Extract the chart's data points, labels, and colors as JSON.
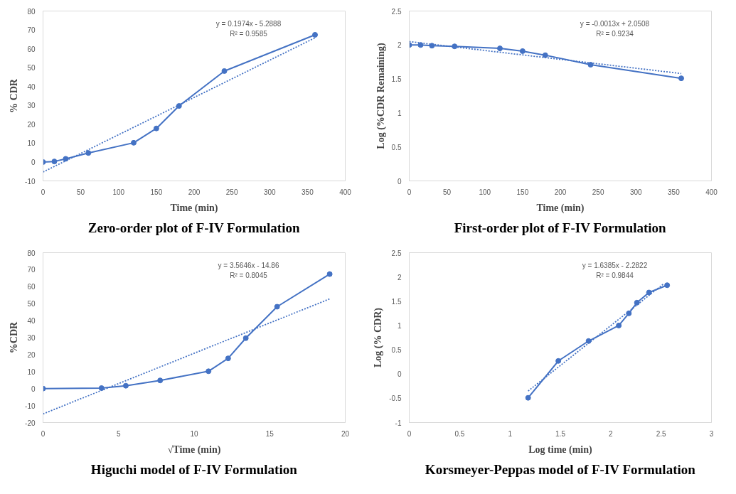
{
  "chart_data": [
    {
      "type": "line",
      "title": "Zero-order plot of F-IV Formulation",
      "xlabel": "Time (min)",
      "ylabel": "% CDR",
      "xlim": [
        0,
        400
      ],
      "xticks": [
        0,
        50,
        100,
        150,
        200,
        250,
        300,
        350,
        400
      ],
      "ylim": [
        -10,
        80
      ],
      "yticks": [
        -10,
        0,
        10,
        20,
        30,
        40,
        50,
        60,
        70,
        80
      ],
      "annotations": [
        "y = 0.1974x - 5.2888",
        "R² = 0.9585"
      ],
      "series": [
        {
          "color": "#4472c4",
          "marker": "circle",
          "line_style": "solid",
          "x": [
            0,
            15,
            30,
            60,
            120,
            150,
            180,
            240,
            360
          ],
          "values": [
            0,
            0.3,
            1.7,
            4.8,
            10.2,
            17.8,
            29.7,
            48.2,
            67.4
          ]
        },
        {
          "color": "#4472c4",
          "marker": "none",
          "line_style": "dotted",
          "x": [
            0,
            360
          ],
          "values": [
            -5.3,
            65.8
          ]
        }
      ]
    },
    {
      "type": "line",
      "title": "First-order plot of F-IV Formulation",
      "xlabel": "Time (min)",
      "ylabel": "Log (%CDR Remaining)",
      "xlim": [
        0,
        400
      ],
      "xticks": [
        0,
        50,
        100,
        150,
        200,
        250,
        300,
        350,
        400
      ],
      "ylim": [
        0,
        2.5
      ],
      "yticks": [
        0,
        0.5,
        1,
        1.5,
        2,
        2.5
      ],
      "annotations": [
        "y = -0.0013x + 2.0508",
        "R² = 0.9234"
      ],
      "series": [
        {
          "color": "#4472c4",
          "marker": "circle",
          "line_style": "solid",
          "x": [
            0,
            15,
            30,
            60,
            120,
            150,
            180,
            240,
            360
          ],
          "values": [
            2,
            2,
            1.99,
            1.98,
            1.95,
            1.91,
            1.85,
            1.71,
            1.51
          ]
        },
        {
          "color": "#4472c4",
          "marker": "none",
          "line_style": "dotted",
          "x": [
            0,
            360
          ],
          "values": [
            2.05,
            1.58
          ]
        }
      ]
    },
    {
      "type": "line",
      "title": "Higuchi model of F-IV Formulation",
      "xlabel": "√Time (min)",
      "ylabel": "%CDR",
      "xlim": [
        0,
        20
      ],
      "xticks": [
        0,
        5,
        10,
        15,
        20
      ],
      "ylim": [
        -20,
        80
      ],
      "yticks": [
        -20,
        -10,
        0,
        10,
        20,
        30,
        40,
        50,
        60,
        70,
        80
      ],
      "annotations": [
        "y = 3.5646x - 14.86",
        "R² = 0.8045"
      ],
      "series": [
        {
          "color": "#4472c4",
          "marker": "circle",
          "line_style": "solid",
          "x": [
            0,
            3.87,
            5.48,
            7.75,
            10.95,
            12.25,
            13.42,
            15.49,
            18.97
          ],
          "values": [
            0,
            0.3,
            1.7,
            4.8,
            10.2,
            17.8,
            29.7,
            48.2,
            67.4
          ]
        },
        {
          "color": "#4472c4",
          "marker": "none",
          "line_style": "dotted",
          "x": [
            0,
            18.97
          ],
          "values": [
            -14.9,
            52.8
          ]
        }
      ]
    },
    {
      "type": "line",
      "title": "Korsmeyer-Peppas model of F-IV Formulation",
      "xlabel": "Log time (min)",
      "ylabel": "Log (% CDR)",
      "xlim": [
        0,
        3
      ],
      "xticks": [
        0,
        0.5,
        1,
        1.5,
        2,
        2.5,
        3
      ],
      "ylim": [
        -1,
        2.5
      ],
      "yticks": [
        -1,
        -0.5,
        0,
        0.5,
        1,
        1.5,
        2,
        2.5
      ],
      "annotations": [
        "y = 1.6385x - 2.2822",
        "R² = 0.9844"
      ],
      "series": [
        {
          "color": "#4472c4",
          "marker": "circle",
          "line_style": "solid",
          "x": [
            1.18,
            1.48,
            1.78,
            2.08,
            2.18,
            2.26,
            2.38,
            2.56
          ],
          "values": [
            -0.49,
            0.27,
            0.68,
            1.0,
            1.25,
            1.47,
            1.68,
            1.83
          ]
        },
        {
          "color": "#4472c4",
          "marker": "none",
          "line_style": "dotted",
          "x": [
            1.18,
            2.52
          ],
          "values": [
            -0.35,
            1.85
          ]
        }
      ]
    }
  ]
}
